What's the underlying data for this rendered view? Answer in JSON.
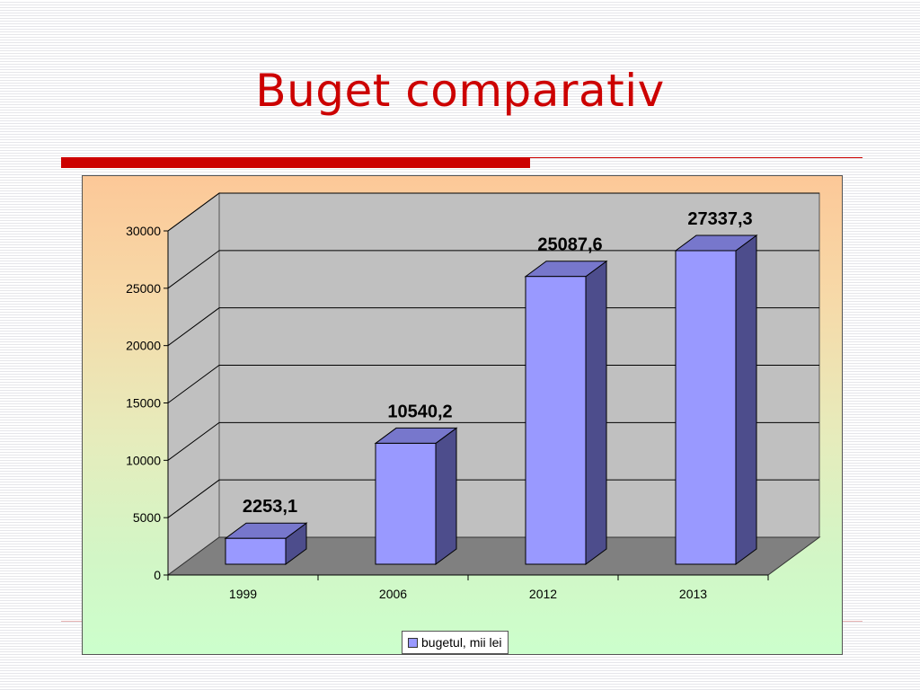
{
  "slide": {
    "title": "Buget comparativ"
  },
  "chart_data": {
    "type": "bar",
    "subtype": "3d-column",
    "categories": [
      "1999",
      "2006",
      "2012",
      "2013"
    ],
    "series": [
      {
        "name": "bugetul, mii lei",
        "values": [
          2253.1,
          10540.2,
          25087.6,
          27337.3
        ],
        "data_labels": [
          "2253,1",
          "10540,2",
          "25087,6",
          "27337,3"
        ]
      }
    ],
    "y_ticks": [
      "0",
      "5000",
      "10000",
      "15000",
      "20000",
      "25000",
      "30000"
    ],
    "ylim": [
      0,
      30000
    ],
    "grid": true,
    "legend": "bottom",
    "colors": {
      "bar_front": "#9999ff",
      "bar_top": "#7777cc",
      "bar_side": "#4d4d8c",
      "wall": "#c0c0c0",
      "floor": "#808080",
      "title": "#cc0000"
    }
  }
}
